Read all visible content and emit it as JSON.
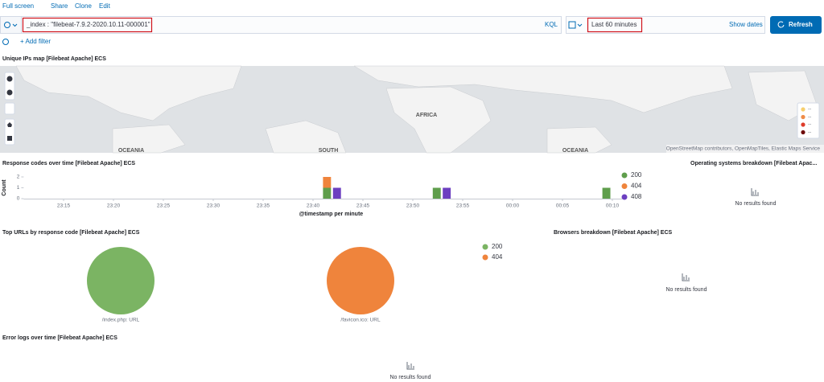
{
  "toolbar": {
    "links": [
      "Full screen",
      "Share",
      "Clone",
      "Edit"
    ]
  },
  "query_bar": {
    "query": "_index : \"filebeat-7.9.2-2020.10.11-000001\"",
    "language": "KQL",
    "time_range": "Last 60 minutes",
    "show_dates": "Show dates",
    "refresh": "Refresh",
    "add_filter": "+ Add filter"
  },
  "panels": {
    "map": {
      "title": "Unique IPs map [Filebeat Apache] ECS",
      "labels": [
        "AFRICA",
        "OCEANIA",
        "SOUTH",
        "OCEANIA"
      ],
      "attribution": "OpenStreetMap contributors, OpenMapTiles, Elastic Maps Service",
      "legend": [
        {
          "label": "--",
          "color": "#f7cf6e"
        },
        {
          "label": "--",
          "color": "#ef8c48"
        },
        {
          "label": "--",
          "color": "#de3c2a"
        },
        {
          "label": "--",
          "color": "#6e0b0b"
        }
      ]
    },
    "response_codes": {
      "title": "Response codes over time [Filebeat Apache] ECS",
      "chart_data": {
        "type": "bar",
        "stacked": true,
        "y_label": "Count",
        "x_label": "@timestamp per minute",
        "x": [
          "23:41",
          "23:42",
          "23:52",
          "23:53",
          "00:09"
        ],
        "series": [
          {
            "name": "200",
            "color": "#5f9e4c",
            "values": [
              1,
              null,
              1,
              null,
              1
            ]
          },
          {
            "name": "404",
            "color": "#ef843c",
            "values": [
              1,
              null,
              null,
              null,
              null
            ]
          },
          {
            "name": "408",
            "color": "#6c3fc0",
            "values": [
              null,
              1,
              null,
              1,
              null
            ]
          }
        ],
        "xlim": [
          "23:11",
          "00:11"
        ],
        "xticks": [
          "23:15",
          "23:20",
          "23:25",
          "23:30",
          "23:35",
          "23:40",
          "23:45",
          "23:50",
          "23:55",
          "00:00",
          "00:05",
          "00:10"
        ],
        "ylim": [
          0,
          2
        ],
        "yticks": [
          0,
          1,
          2
        ]
      }
    },
    "os_breakdown": {
      "title": "Operating systems breakdown [Filebeat Apac...",
      "message": "No results found"
    },
    "top_urls": {
      "title": "Top URLs by response code [Filebeat Apache] ECS",
      "chart_data": {
        "type": "pie",
        "categories": [
          "/index.php: URL",
          "/favicon.ico: URL"
        ],
        "series": [
          {
            "name": "200",
            "color": "#7bb463",
            "values": [
              3,
              null
            ]
          },
          {
            "name": "404",
            "color": "#ef843c",
            "values": [
              null,
              1
            ]
          }
        ]
      }
    },
    "browsers": {
      "title": "Browsers breakdown [Filebeat Apache] ECS",
      "message": "No results found"
    },
    "error_logs": {
      "title": "Error logs over time [Filebeat Apache] ECS",
      "message": "No results found"
    }
  }
}
